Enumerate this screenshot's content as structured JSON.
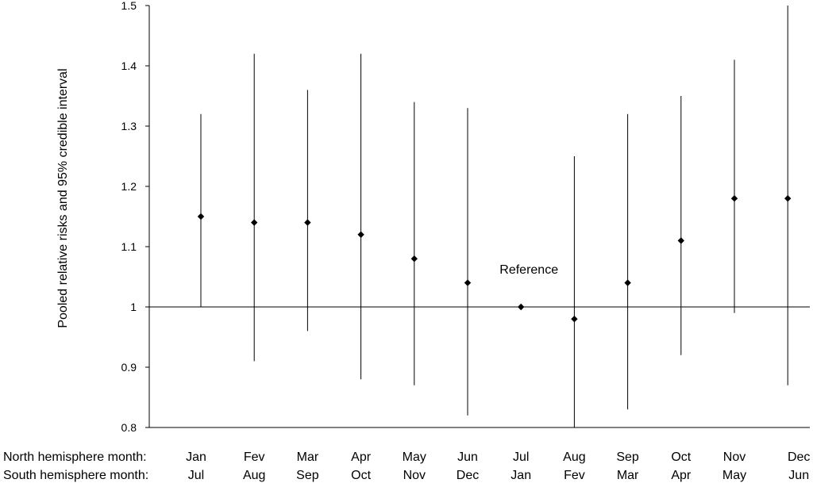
{
  "chart_data": {
    "type": "scatter",
    "ylabel": "Pooled relative risks  and 95% credible interval",
    "ylim": [
      0.8,
      1.5
    ],
    "yticks": [
      0.8,
      0.9,
      1,
      1.1,
      1.2,
      1.3,
      1.4,
      1.5
    ],
    "ytick_labels": [
      "0.8",
      "0.9",
      "1",
      "1.1",
      "1.2",
      "1.3",
      "1.4",
      "1.5"
    ],
    "reference_line": 1,
    "category_rows": [
      {
        "label": "North hemisphere month:",
        "values": [
          "Jan",
          "Fev",
          "Mar",
          "Apr",
          "May",
          "Jun",
          "Jul",
          "Aug",
          "Sep",
          "Oct",
          "Nov",
          "Dec"
        ]
      },
      {
        "label": "South hemisphere month:",
        "values": [
          "Jul",
          "Aug",
          "Sep",
          "Oct",
          "Nov",
          "Dec",
          "Jan",
          "Fev",
          "Mar",
          "Apr",
          "May",
          "Jun"
        ]
      }
    ],
    "estimates": [
      1.15,
      1.14,
      1.14,
      1.12,
      1.08,
      1.04,
      1.0,
      0.98,
      1.04,
      1.11,
      1.18,
      1.18
    ],
    "lower": [
      1.0,
      0.91,
      0.96,
      0.88,
      0.87,
      0.82,
      null,
      0.8,
      0.83,
      0.92,
      0.99,
      0.87
    ],
    "upper": [
      1.32,
      1.42,
      1.36,
      1.42,
      1.34,
      1.33,
      null,
      1.25,
      1.32,
      1.35,
      1.41,
      1.5
    ],
    "annotations": [
      {
        "text": "Reference",
        "x_index": 6,
        "y": 1.045
      }
    ],
    "grid": false,
    "legend": "none"
  }
}
